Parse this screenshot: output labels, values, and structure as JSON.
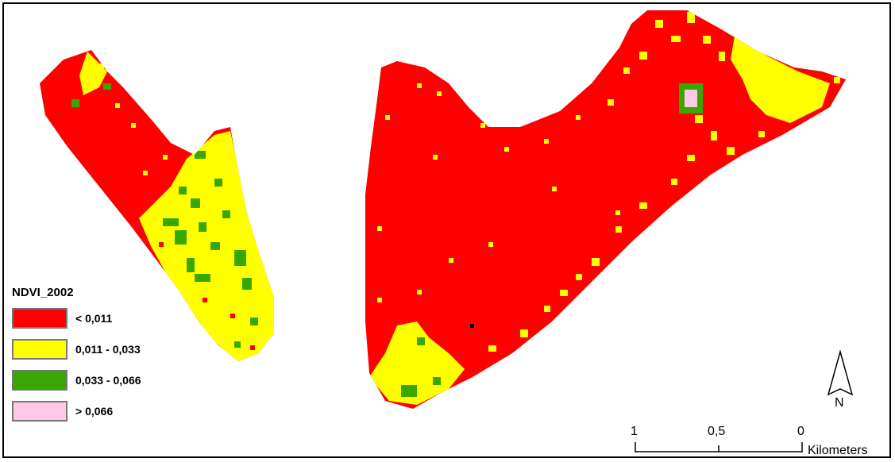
{
  "legend": {
    "title": "NDVI_2002",
    "items": [
      {
        "label": "< 0,011",
        "color": "#ff0000"
      },
      {
        "label": "0,011 - 0,033",
        "color": "#ffff00"
      },
      {
        "label": "0,033 - 0,066",
        "color": "#38a800"
      },
      {
        "label": "> 0,066",
        "color": "#ffc8e6"
      }
    ]
  },
  "scale_bar": {
    "ticks": [
      "1",
      "0,5",
      "0"
    ],
    "unit": "Kilometers"
  },
  "north_arrow": {
    "label": "N"
  }
}
